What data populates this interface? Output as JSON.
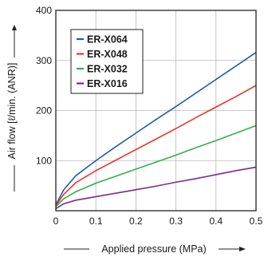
{
  "chart_data": {
    "type": "line",
    "title": "",
    "xlabel": "Applied pressure (MPa)",
    "ylabel": "Air flow [ℓ/min. (ANR)]",
    "xlim": [
      0,
      0.5
    ],
    "ylim": [
      0,
      400
    ],
    "x_ticks": [
      "0",
      "0.1",
      "0.2",
      "0.3",
      "0.4",
      "0.5"
    ],
    "y_ticks": [
      "100",
      "200",
      "300",
      "400"
    ],
    "grid": true,
    "legend_position": "top-left",
    "series": [
      {
        "name": "ER-X064",
        "color": "#1f5fa8",
        "x": [
          0,
          0.02,
          0.05,
          0.1,
          0.15,
          0.2,
          0.25,
          0.3,
          0.35,
          0.4,
          0.45,
          0.5
        ],
        "values": [
          12,
          42,
          70,
          100,
          128,
          155,
          182,
          208,
          235,
          262,
          289,
          316
        ]
      },
      {
        "name": "ER-X048",
        "color": "#e8352e",
        "x": [
          0,
          0.02,
          0.05,
          0.1,
          0.15,
          0.2,
          0.25,
          0.3,
          0.35,
          0.4,
          0.45,
          0.5
        ],
        "values": [
          10,
          33,
          56,
          80,
          101,
          122,
          143,
          164,
          186,
          207,
          228,
          250
        ]
      },
      {
        "name": "ER-X032",
        "color": "#2fb24a",
        "x": [
          0,
          0.02,
          0.05,
          0.1,
          0.15,
          0.2,
          0.25,
          0.3,
          0.35,
          0.4,
          0.45,
          0.5
        ],
        "values": [
          8,
          24,
          38,
          55,
          69,
          83,
          97,
          111,
          126,
          140,
          155,
          170
        ]
      },
      {
        "name": "ER-X016",
        "color": "#7d2a8c",
        "x": [
          0,
          0.02,
          0.05,
          0.1,
          0.15,
          0.2,
          0.25,
          0.3,
          0.35,
          0.4,
          0.45,
          0.5
        ],
        "values": [
          4,
          14,
          21,
          28,
          35,
          42,
          49,
          57,
          64,
          72,
          80,
          87
        ]
      }
    ]
  }
}
